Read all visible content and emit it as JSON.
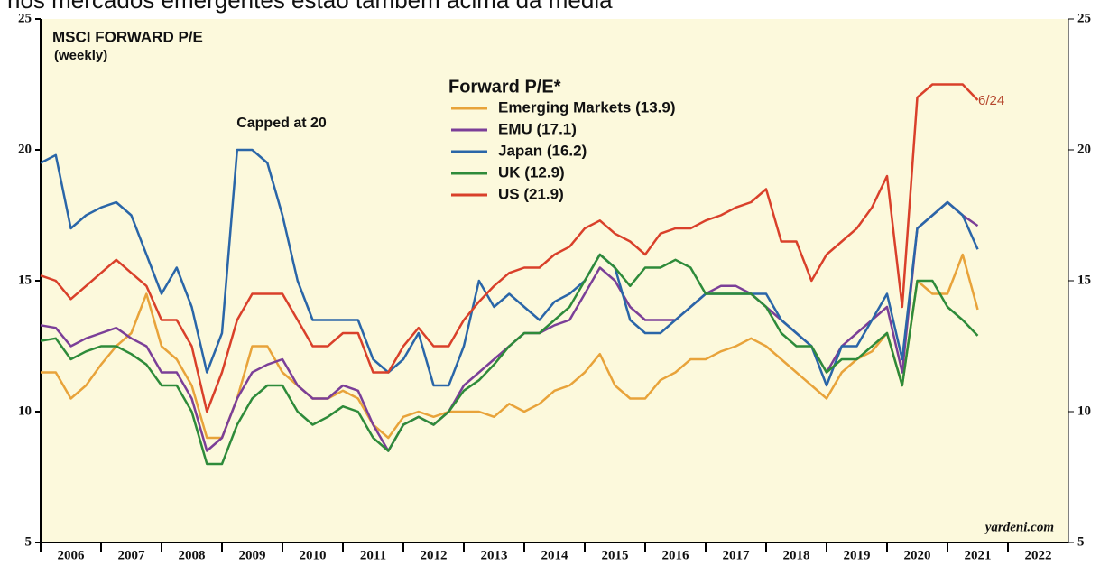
{
  "caption": "nos mercados emergentes estão também acima da média",
  "chart_data": {
    "type": "line",
    "title": "MSCI FORWARD P/E",
    "subtitle": "(weekly)",
    "legend_title": "Forward P/E*",
    "annotations": [
      "Capped at 20",
      "6/24"
    ],
    "source": "yardeni.com",
    "categories": [
      "2006",
      "2007",
      "2008",
      "2009",
      "2010",
      "2011",
      "2012",
      "2013",
      "2014",
      "2015",
      "2016",
      "2017",
      "2018",
      "2019",
      "2020",
      "2021",
      "2022"
    ],
    "xlim": [
      2006,
      2023
    ],
    "x": [
      2006,
      2006.25,
      2006.5,
      2006.75,
      2007,
      2007.25,
      2007.5,
      2007.75,
      2008,
      2008.25,
      2008.5,
      2008.75,
      2009,
      2009.25,
      2009.5,
      2009.75,
      2010,
      2010.25,
      2010.5,
      2010.75,
      2011,
      2011.25,
      2011.5,
      2011.75,
      2012,
      2012.25,
      2012.5,
      2012.75,
      2013,
      2013.25,
      2013.5,
      2013.75,
      2014,
      2014.25,
      2014.5,
      2014.75,
      2015,
      2015.25,
      2015.5,
      2015.75,
      2016,
      2016.25,
      2016.5,
      2016.75,
      2017,
      2017.25,
      2017.5,
      2017.75,
      2018,
      2018.25,
      2018.5,
      2018.75,
      2019,
      2019.25,
      2019.5,
      2019.75,
      2020,
      2020.25,
      2020.5,
      2020.75,
      2021,
      2021.25,
      2021.5
    ],
    "ylim": [
      5,
      25
    ],
    "yticks": [
      5,
      10,
      15,
      20,
      25
    ],
    "series": [
      {
        "name": "Emerging Markets (13.9)",
        "color": "#e8a33a",
        "values": [
          11.5,
          11.5,
          10.5,
          11,
          11.8,
          12.5,
          13,
          14.5,
          12.5,
          12,
          11,
          9,
          9,
          10.5,
          12.5,
          12.5,
          11.5,
          11,
          10.5,
          10.5,
          10.8,
          10.5,
          9.5,
          9,
          9.8,
          10,
          9.8,
          10,
          10,
          10,
          9.8,
          10.3,
          10,
          10.3,
          10.8,
          11,
          11.5,
          12.2,
          11,
          10.5,
          10.5,
          11.2,
          11.5,
          12,
          12,
          12.3,
          12.5,
          12.8,
          12.5,
          12,
          11.5,
          11,
          10.5,
          11.5,
          12,
          12.3,
          13,
          11,
          15,
          14.5,
          14.5,
          16,
          13.9
        ]
      },
      {
        "name": "EMU (17.1)",
        "color": "#7b3f98",
        "values": [
          13.3,
          13.2,
          12.5,
          12.8,
          13,
          13.2,
          12.8,
          12.5,
          11.5,
          11.5,
          10.5,
          8.5,
          9,
          10.5,
          11.5,
          11.8,
          12,
          11,
          10.5,
          10.5,
          11,
          10.8,
          9.5,
          8.5,
          9.5,
          9.8,
          9.5,
          10,
          11,
          11.5,
          12,
          12.5,
          13,
          13,
          13.3,
          13.5,
          14.5,
          15.5,
          15,
          14,
          13.5,
          13.5,
          13.5,
          14,
          14.5,
          14.8,
          14.8,
          14.5,
          14,
          13.5,
          13,
          12.5,
          11.5,
          12.5,
          13,
          13.5,
          14,
          11.5,
          17,
          17.5,
          18,
          17.5,
          17.1
        ]
      },
      {
        "name": "Japan (16.2)",
        "color": "#2a66a8",
        "values": [
          19.5,
          19.8,
          17,
          17.5,
          17.8,
          18,
          17.5,
          16,
          14.5,
          15.5,
          14,
          11.5,
          13,
          20,
          20,
          19.5,
          17.5,
          15,
          13.5,
          13.5,
          13.5,
          13.5,
          12,
          11.5,
          12,
          13,
          11,
          11,
          12.5,
          15,
          14,
          14.5,
          14,
          13.5,
          14.2,
          14.5,
          15,
          16,
          15.5,
          13.5,
          13,
          13,
          13.5,
          14,
          14.5,
          14.5,
          14.5,
          14.5,
          14.5,
          13.5,
          13,
          12.5,
          11,
          12.5,
          12.5,
          13.5,
          14.5,
          12,
          17,
          17.5,
          18,
          17.5,
          16.2
        ]
      },
      {
        "name": "UK (12.9)",
        "color": "#2e8b3a",
        "values": [
          12.7,
          12.8,
          12,
          12.3,
          12.5,
          12.5,
          12.2,
          11.8,
          11,
          11,
          10,
          8,
          8,
          9.5,
          10.5,
          11,
          11,
          10,
          9.5,
          9.8,
          10.2,
          10,
          9,
          8.5,
          9.5,
          9.8,
          9.5,
          10,
          10.8,
          11.2,
          11.8,
          12.5,
          13,
          13,
          13.5,
          14,
          15,
          16,
          15.5,
          14.8,
          15.5,
          15.5,
          15.8,
          15.5,
          14.5,
          14.5,
          14.5,
          14.5,
          14,
          13,
          12.5,
          12.5,
          11.5,
          12,
          12,
          12.5,
          13,
          11,
          15,
          15,
          14,
          13.5,
          12.9
        ]
      },
      {
        "name": "US (21.9)",
        "color": "#d9402a",
        "values": [
          15.2,
          15,
          14.3,
          14.8,
          15.3,
          15.8,
          15.3,
          14.8,
          13.5,
          13.5,
          12.5,
          10,
          11.5,
          13.5,
          14.5,
          14.5,
          14.5,
          13.5,
          12.5,
          12.5,
          13,
          13,
          11.5,
          11.5,
          12.5,
          13.2,
          12.5,
          12.5,
          13.5,
          14.2,
          14.8,
          15.3,
          15.5,
          15.5,
          16,
          16.3,
          17,
          17.3,
          16.8,
          16.5,
          16,
          16.8,
          17,
          17,
          17.3,
          17.5,
          17.8,
          18,
          18.5,
          16.5,
          16.5,
          15,
          16,
          16.5,
          17,
          17.8,
          19,
          14,
          22,
          22.5,
          22.5,
          22.5,
          21.9
        ]
      }
    ]
  }
}
